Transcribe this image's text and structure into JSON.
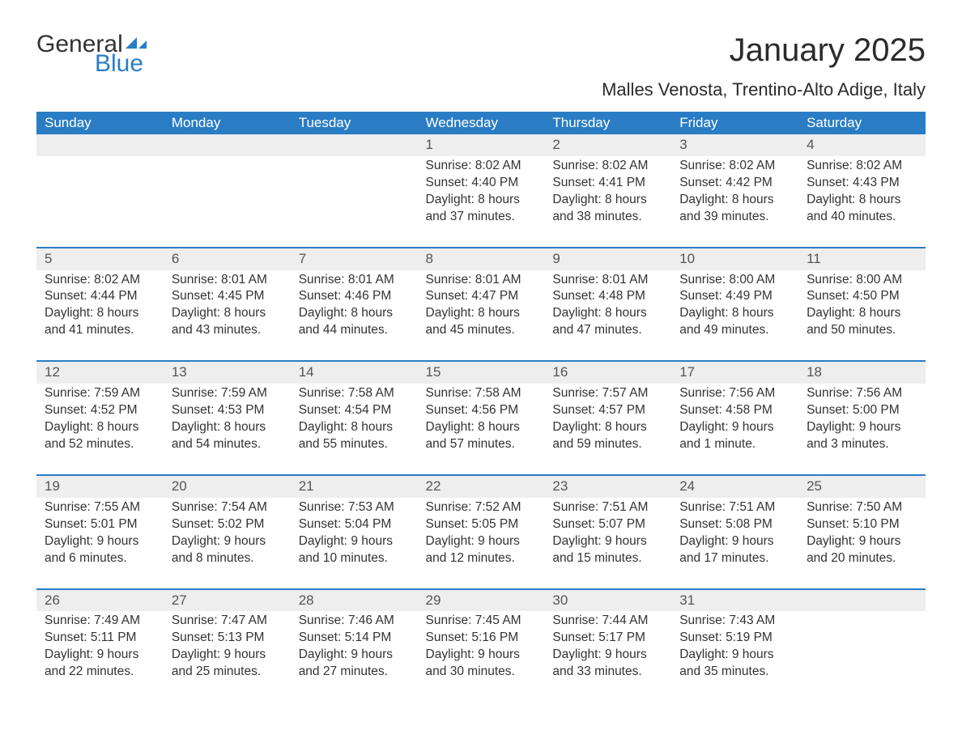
{
  "logo": {
    "text1": "General",
    "text2": "Blue",
    "icon_color": "#2a7dc4"
  },
  "title": "January 2025",
  "subtitle": "Malles Venosta, Trentino-Alto Adige, Italy",
  "header_bg": "#2a7dc4",
  "day_bg": "#eeeeee",
  "weekdays": [
    "Sunday",
    "Monday",
    "Tuesday",
    "Wednesday",
    "Thursday",
    "Friday",
    "Saturday"
  ],
  "weeks": [
    [
      null,
      null,
      null,
      {
        "n": "1",
        "sunrise": "8:02 AM",
        "sunset": "4:40 PM",
        "daylight": "8 hours and 37 minutes."
      },
      {
        "n": "2",
        "sunrise": "8:02 AM",
        "sunset": "4:41 PM",
        "daylight": "8 hours and 38 minutes."
      },
      {
        "n": "3",
        "sunrise": "8:02 AM",
        "sunset": "4:42 PM",
        "daylight": "8 hours and 39 minutes."
      },
      {
        "n": "4",
        "sunrise": "8:02 AM",
        "sunset": "4:43 PM",
        "daylight": "8 hours and 40 minutes."
      }
    ],
    [
      {
        "n": "5",
        "sunrise": "8:02 AM",
        "sunset": "4:44 PM",
        "daylight": "8 hours and 41 minutes."
      },
      {
        "n": "6",
        "sunrise": "8:01 AM",
        "sunset": "4:45 PM",
        "daylight": "8 hours and 43 minutes."
      },
      {
        "n": "7",
        "sunrise": "8:01 AM",
        "sunset": "4:46 PM",
        "daylight": "8 hours and 44 minutes."
      },
      {
        "n": "8",
        "sunrise": "8:01 AM",
        "sunset": "4:47 PM",
        "daylight": "8 hours and 45 minutes."
      },
      {
        "n": "9",
        "sunrise": "8:01 AM",
        "sunset": "4:48 PM",
        "daylight": "8 hours and 47 minutes."
      },
      {
        "n": "10",
        "sunrise": "8:00 AM",
        "sunset": "4:49 PM",
        "daylight": "8 hours and 49 minutes."
      },
      {
        "n": "11",
        "sunrise": "8:00 AM",
        "sunset": "4:50 PM",
        "daylight": "8 hours and 50 minutes."
      }
    ],
    [
      {
        "n": "12",
        "sunrise": "7:59 AM",
        "sunset": "4:52 PM",
        "daylight": "8 hours and 52 minutes."
      },
      {
        "n": "13",
        "sunrise": "7:59 AM",
        "sunset": "4:53 PM",
        "daylight": "8 hours and 54 minutes."
      },
      {
        "n": "14",
        "sunrise": "7:58 AM",
        "sunset": "4:54 PM",
        "daylight": "8 hours and 55 minutes."
      },
      {
        "n": "15",
        "sunrise": "7:58 AM",
        "sunset": "4:56 PM",
        "daylight": "8 hours and 57 minutes."
      },
      {
        "n": "16",
        "sunrise": "7:57 AM",
        "sunset": "4:57 PM",
        "daylight": "8 hours and 59 minutes."
      },
      {
        "n": "17",
        "sunrise": "7:56 AM",
        "sunset": "4:58 PM",
        "daylight": "9 hours and 1 minute."
      },
      {
        "n": "18",
        "sunrise": "7:56 AM",
        "sunset": "5:00 PM",
        "daylight": "9 hours and 3 minutes."
      }
    ],
    [
      {
        "n": "19",
        "sunrise": "7:55 AM",
        "sunset": "5:01 PM",
        "daylight": "9 hours and 6 minutes."
      },
      {
        "n": "20",
        "sunrise": "7:54 AM",
        "sunset": "5:02 PM",
        "daylight": "9 hours and 8 minutes."
      },
      {
        "n": "21",
        "sunrise": "7:53 AM",
        "sunset": "5:04 PM",
        "daylight": "9 hours and 10 minutes."
      },
      {
        "n": "22",
        "sunrise": "7:52 AM",
        "sunset": "5:05 PM",
        "daylight": "9 hours and 12 minutes."
      },
      {
        "n": "23",
        "sunrise": "7:51 AM",
        "sunset": "5:07 PM",
        "daylight": "9 hours and 15 minutes."
      },
      {
        "n": "24",
        "sunrise": "7:51 AM",
        "sunset": "5:08 PM",
        "daylight": "9 hours and 17 minutes."
      },
      {
        "n": "25",
        "sunrise": "7:50 AM",
        "sunset": "5:10 PM",
        "daylight": "9 hours and 20 minutes."
      }
    ],
    [
      {
        "n": "26",
        "sunrise": "7:49 AM",
        "sunset": "5:11 PM",
        "daylight": "9 hours and 22 minutes."
      },
      {
        "n": "27",
        "sunrise": "7:47 AM",
        "sunset": "5:13 PM",
        "daylight": "9 hours and 25 minutes."
      },
      {
        "n": "28",
        "sunrise": "7:46 AM",
        "sunset": "5:14 PM",
        "daylight": "9 hours and 27 minutes."
      },
      {
        "n": "29",
        "sunrise": "7:45 AM",
        "sunset": "5:16 PM",
        "daylight": "9 hours and 30 minutes."
      },
      {
        "n": "30",
        "sunrise": "7:44 AM",
        "sunset": "5:17 PM",
        "daylight": "9 hours and 33 minutes."
      },
      {
        "n": "31",
        "sunrise": "7:43 AM",
        "sunset": "5:19 PM",
        "daylight": "9 hours and 35 minutes."
      },
      null
    ]
  ],
  "labels": {
    "sunrise": "Sunrise: ",
    "sunset": "Sunset: ",
    "daylight": "Daylight: "
  }
}
